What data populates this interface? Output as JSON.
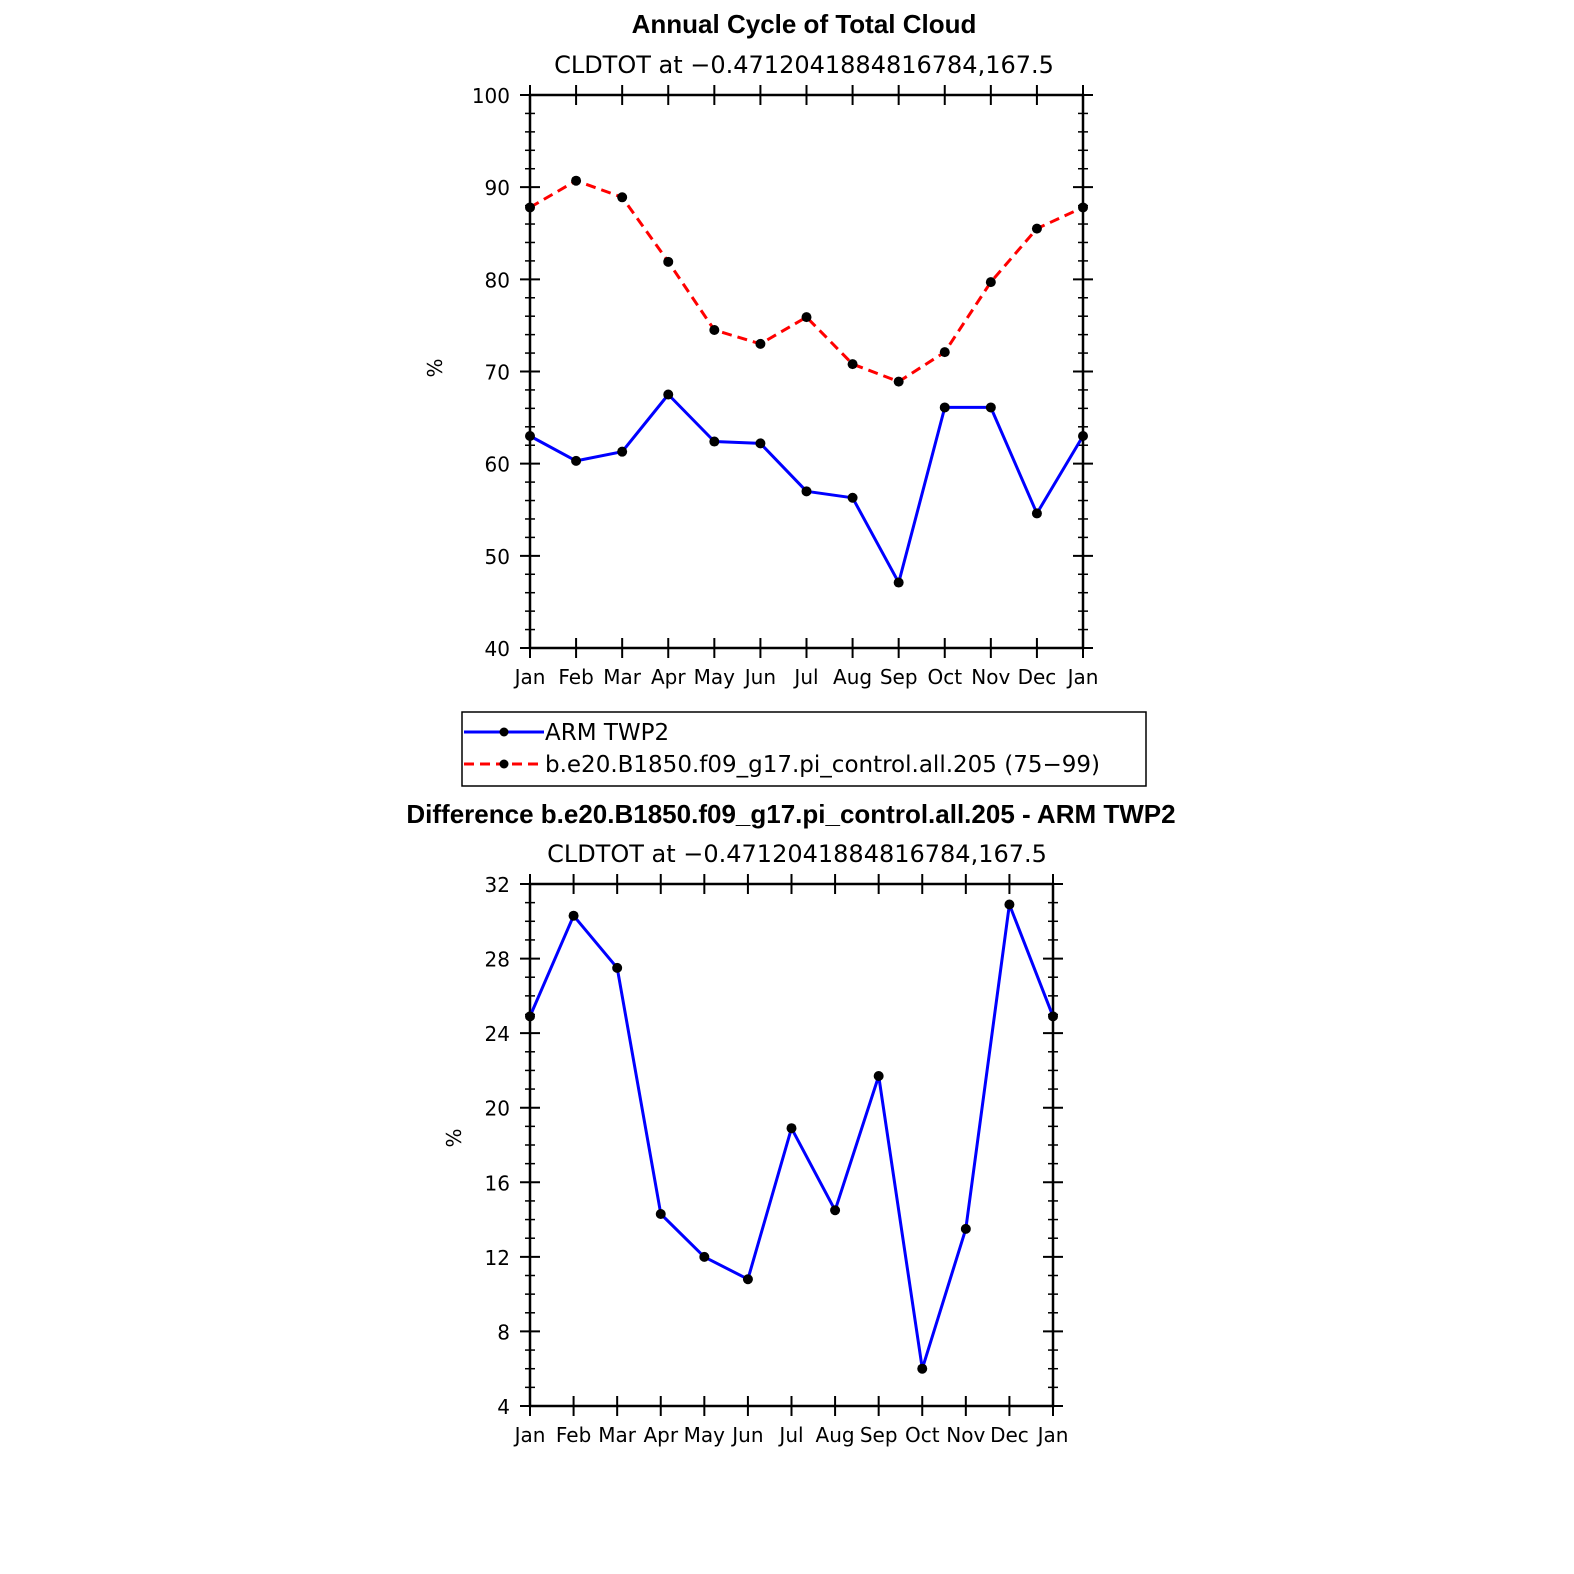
{
  "chart_data": [
    {
      "type": "line",
      "title": "Annual Cycle of Total Cloud",
      "subtitle": "CLDTOT at −0.4712041884816784,167.5",
      "ylabel": "%",
      "xlabel": "",
      "categories": [
        "Jan",
        "Feb",
        "Mar",
        "Apr",
        "May",
        "Jun",
        "Jul",
        "Aug",
        "Sep",
        "Oct",
        "Nov",
        "Dec",
        "Jan"
      ],
      "ylim": [
        40,
        100
      ],
      "yticks": [
        40,
        50,
        60,
        70,
        80,
        90,
        100
      ],
      "grid": false,
      "legend_position": "bottom",
      "series": [
        {
          "name": "ARM TWP2",
          "color": "#0000ff",
          "dash": "solid",
          "values": [
            63.0,
            60.3,
            61.3,
            67.5,
            62.4,
            62.2,
            57.0,
            56.3,
            47.1,
            66.1,
            66.1,
            54.6,
            63.0
          ]
        },
        {
          "name": "b.e20.B1850.f09_g17.pi_control.all.205 (75−99)",
          "color": "#ff0000",
          "dash": "dashed",
          "values": [
            87.8,
            90.7,
            88.9,
            81.9,
            74.5,
            73.0,
            75.9,
            70.8,
            68.9,
            72.1,
            79.7,
            85.5,
            87.8
          ]
        }
      ]
    },
    {
      "type": "line",
      "title": "Difference b.e20.B1850.f09_g17.pi_control.all.205 - ARM TWP2",
      "subtitle": "CLDTOT at −0.4712041884816784,167.5",
      "ylabel": "%",
      "xlabel": "",
      "categories": [
        "Jan",
        "Feb",
        "Mar",
        "Apr",
        "May",
        "Jun",
        "Jul",
        "Aug",
        "Sep",
        "Oct",
        "Nov",
        "Dec",
        "Jan"
      ],
      "ylim": [
        4,
        32
      ],
      "yticks": [
        4,
        8,
        12,
        16,
        20,
        24,
        28,
        32
      ],
      "grid": false,
      "series": [
        {
          "color": "#0000ff",
          "dash": "solid",
          "values": [
            24.9,
            30.3,
            27.5,
            14.3,
            12.0,
            10.8,
            18.9,
            14.5,
            21.7,
            6.0,
            13.5,
            30.9,
            24.9
          ]
        }
      ]
    }
  ]
}
